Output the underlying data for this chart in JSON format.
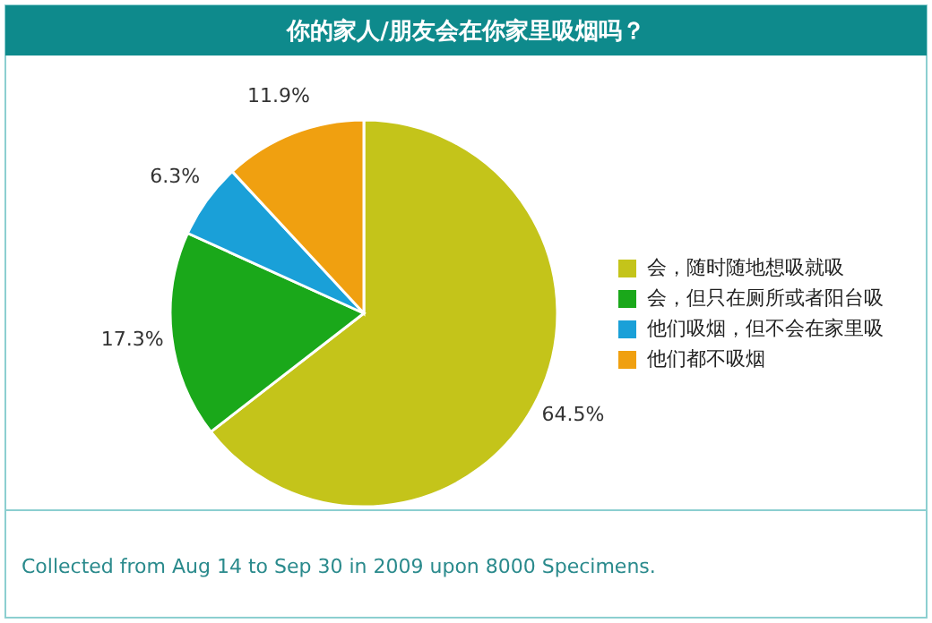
{
  "chart_data": {
    "type": "pie",
    "title": "你的家人/朋友会在你家里吸烟吗？",
    "categories": [
      "会，随时随地想吸就吸",
      "会，但只在厕所或者阳台吸",
      "他们吸烟，但不会在家里吸",
      "他们都不吸烟"
    ],
    "values": [
      64.5,
      17.3,
      6.3,
      11.9
    ],
    "colors": [
      "#c4c41a",
      "#1aa81a",
      "#1aa0d8",
      "#f0a010"
    ],
    "value_labels": [
      "64.5%",
      "17.3%",
      "6.3%",
      "11.9%"
    ],
    "legend": "right",
    "annotations": [
      "Collected from Aug 14 to Sep 30 in 2009 upon 8000 Specimens."
    ]
  }
}
